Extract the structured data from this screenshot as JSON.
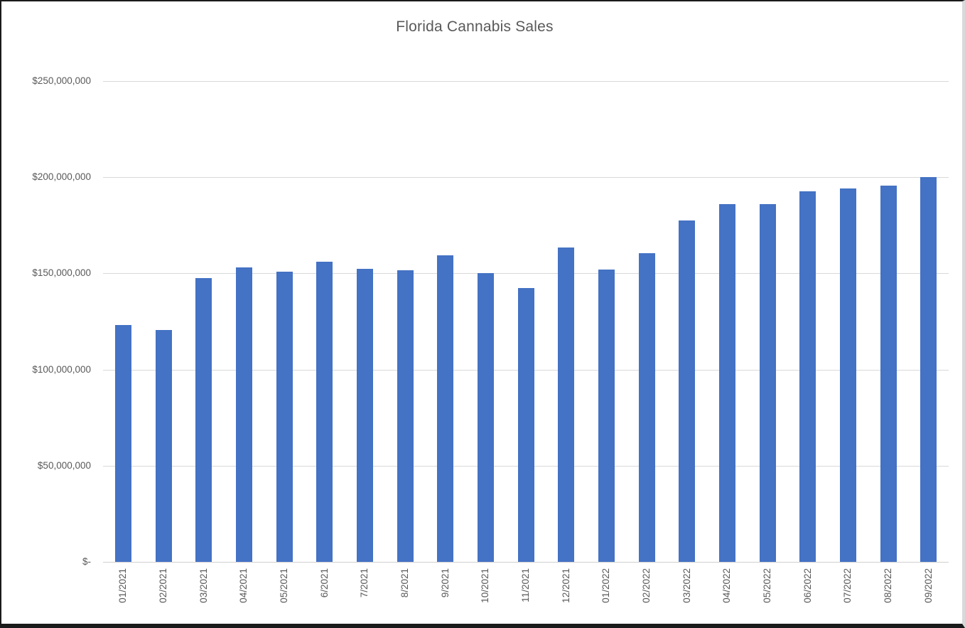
{
  "window": {
    "background": "#ffffff",
    "frame_border_dark": "#1a1a1a",
    "frame_border_light": "#d9d9d9"
  },
  "chart_data": {
    "type": "bar",
    "title": "Florida Cannabis Sales",
    "xlabel": "",
    "ylabel": "",
    "legend": "none",
    "grid": true,
    "ylim": [
      0,
      250000000
    ],
    "categories": [
      "01/2021",
      "02/2021",
      "03/2021",
      "04/2021",
      "05/2021",
      "6/2021",
      "7/2021",
      "8/2021",
      "9/2021",
      "10/2021",
      "11/2021",
      "12/2021",
      "01/2022",
      "02/2022",
      "03/2022",
      "04/2022",
      "05/2022",
      "06/2022",
      "07/2022",
      "08/2022",
      "09/2022"
    ],
    "values": [
      123000000,
      120500000,
      147500000,
      153000000,
      151000000,
      156000000,
      152500000,
      151500000,
      159500000,
      150000000,
      142500000,
      163500000,
      152000000,
      160500000,
      177500000,
      186000000,
      186000000,
      192500000,
      194000000,
      195500000,
      200000000
    ],
    "y_ticks": [
      {
        "value": 250000000,
        "label": "$250,000,000"
      },
      {
        "value": 200000000,
        "label": "$200,000,000"
      },
      {
        "value": 150000000,
        "label": "$150,000,000"
      },
      {
        "value": 100000000,
        "label": "$100,000,000"
      },
      {
        "value": 50000000,
        "label": "$50,000,000"
      },
      {
        "value": 0,
        "label": "$-"
      }
    ],
    "colors": {
      "bar": "#4472C4",
      "gridline": "#d9d9d9",
      "axis_line": "#cfcfcf",
      "axis_text": "#595959",
      "title_text": "#595959"
    }
  }
}
